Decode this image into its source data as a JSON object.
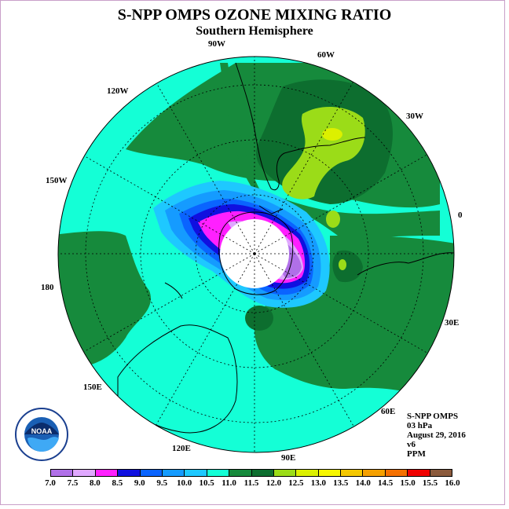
{
  "header": {
    "title": "S-NPP OMPS OZONE MIXING RATIO",
    "subtitle": "Southern Hemisphere"
  },
  "map": {
    "projection": "south-polar-stereographic",
    "longitude_labels": {
      "w90": "90W",
      "w60": "60W",
      "w30": "30W",
      "e0": "0",
      "e30": "30E",
      "e60": "60E",
      "e90": "90E",
      "e120": "120E",
      "e150": "150E",
      "e180": "180",
      "w150": "150W",
      "w120": "120W"
    },
    "background_color": "#14ffd6",
    "colors": {
      "band_11_5": "#168a3c",
      "band_12_0": "#0d6e2f",
      "band_12_5": "#9bdc18",
      "band_13_0": "#dcf000",
      "band_10_5": "#1ec8ff",
      "band_10_0": "#159bff",
      "band_9_5": "#0a64ff",
      "band_9_0": "#1010e0",
      "band_8_5": "#ff20ff",
      "band_8_0": "#e0a8ff",
      "band_7_5": "#b070e8",
      "polar_night": "#ffffff"
    }
  },
  "info": {
    "instrument": "S-NPP OMPS",
    "level": "03 hPa",
    "date": "August 29, 2016",
    "version": "v6",
    "units": "PPM"
  },
  "colorbar": {
    "ticks": [
      "7.0",
      "7.5",
      "8.0",
      "8.5",
      "9.0",
      "9.5",
      "10.0",
      "10.5",
      "11.0",
      "11.5",
      "12.0",
      "12.5",
      "13.0",
      "13.5",
      "14.0",
      "14.5",
      "15.0",
      "15.5",
      "16.0"
    ],
    "colors": [
      "#b070e8",
      "#e0a8ff",
      "#ff20ff",
      "#1010e0",
      "#0a64ff",
      "#159bff",
      "#1ec8ff",
      "#14ffd6",
      "#168a3c",
      "#0d6e2f",
      "#9bdc18",
      "#dcf000",
      "#f7f700",
      "#f5c800",
      "#f5a000",
      "#f57000",
      "#f00000",
      "#8b5a3c"
    ]
  },
  "logo": {
    "name": "noaa-logo",
    "text": "NOAA"
  }
}
